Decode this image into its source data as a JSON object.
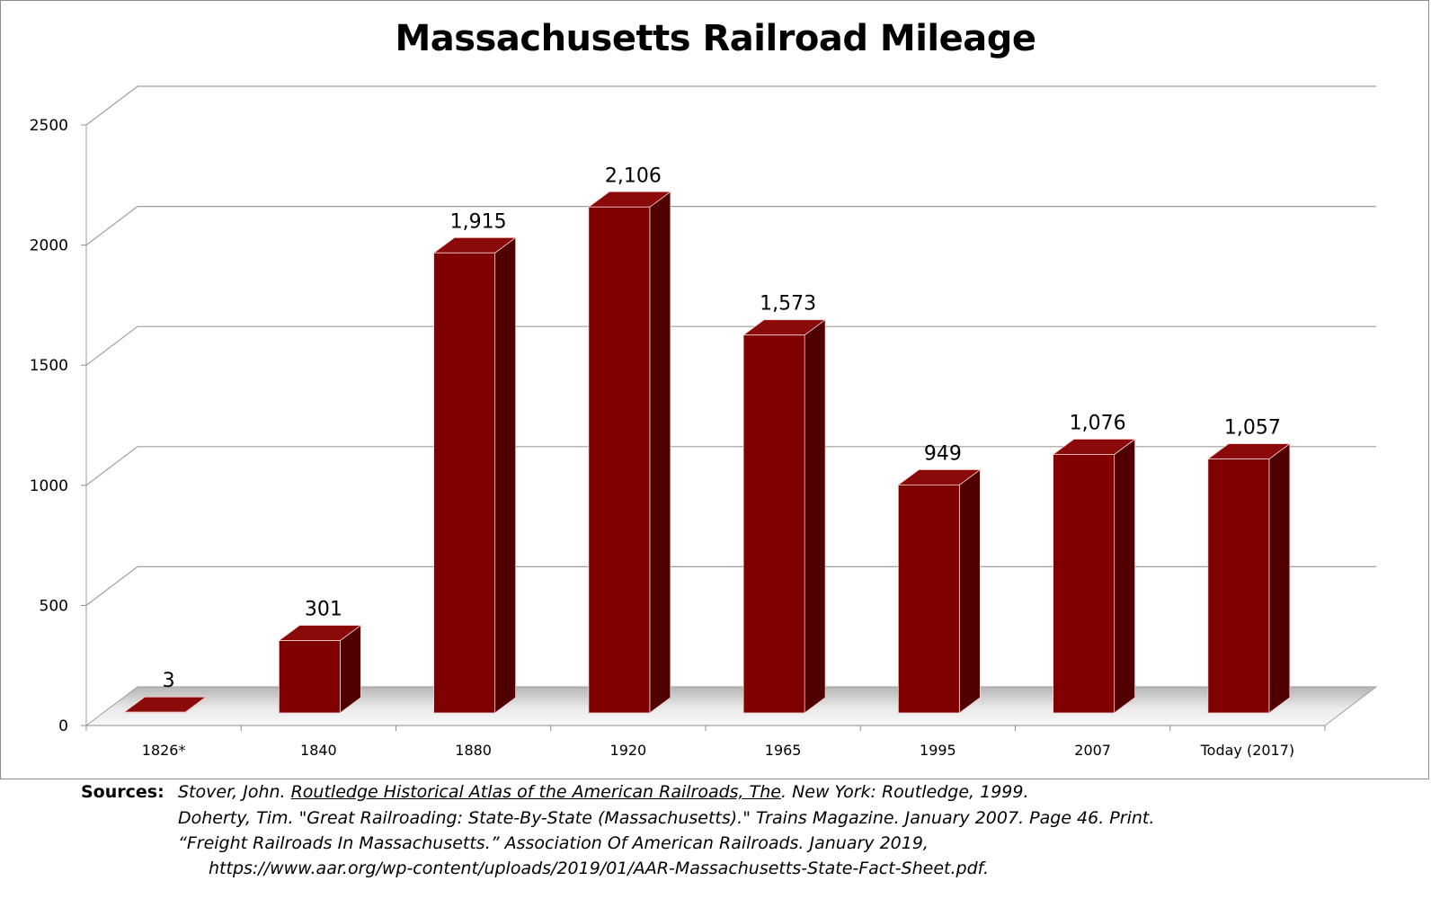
{
  "chart_data": {
    "type": "bar",
    "title": "Massachusetts Railroad Mileage",
    "categories": [
      "1826*",
      "1840",
      "1880",
      "1920",
      "1965",
      "1995",
      "2007",
      "Today  (2017)"
    ],
    "values": [
      3,
      301,
      1915,
      2106,
      1573,
      949,
      1076,
      1057
    ],
    "data_labels": [
      "3",
      "301",
      "1,915",
      "2,106",
      "1,573",
      "949",
      "1,076",
      "1,057"
    ],
    "yticks": [
      "0",
      "500",
      "1000",
      "1500",
      "2000",
      "2500"
    ],
    "ylim": [
      0,
      2500
    ],
    "grid": true,
    "three_d": true,
    "legend": "none",
    "colors": {
      "bar_front": "#800000",
      "bar_side": "#500000",
      "bar_top": "#8a0a0a",
      "gridline": "#9e9e9e"
    }
  },
  "sources": {
    "heading": "Sources:",
    "line1_a": "Stover, John. ",
    "line1_title": "Routledge Historical Atlas of the American Railroads, The",
    "line1_b": ". New York: Routledge, 1999.",
    "line2": "Doherty, Tim. \"Great Railroading: State-By-State (Massachusetts).\" Trains Magazine. January 2007. Page 46. Print.",
    "line3": "“Freight Railroads In Massachusetts.” Association Of American Railroads. January 2019,",
    "line4": "https://www.aar.org/wp-content/uploads/2019/01/AAR-Massachusetts-State-Fact-Sheet.pdf."
  }
}
